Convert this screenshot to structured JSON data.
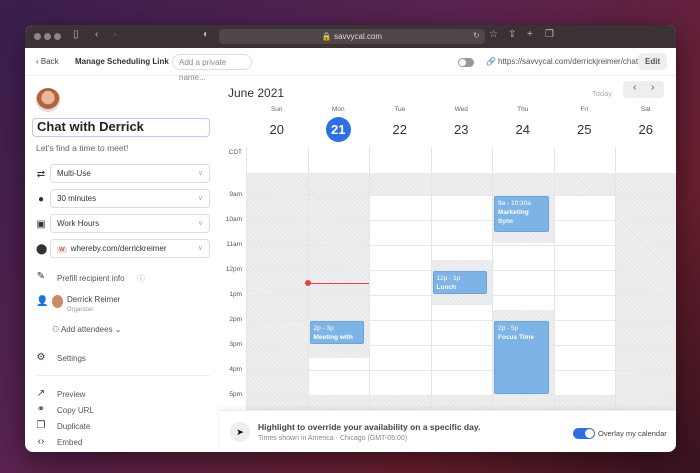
{
  "browser": {
    "url": "savvycal.com"
  },
  "toolbar": {
    "back": "Back",
    "title": "Manage Scheduling Link",
    "private_name_placeholder": "Add a private name...",
    "link": "https://savvycal.com/derrickjreimer/chat",
    "edit": "Edit",
    "public_toggle_on": false
  },
  "sidebar": {
    "title": "Chat with Derrick",
    "subtitle": "Let's find a time to meet!",
    "usage": "Multi-Use",
    "duration": "30 minutes",
    "availability": "Work Hours",
    "location": "whereby.com/derrickreimer",
    "prefill": "Prefill recipient info",
    "organizer_name": "Derrick Reimer",
    "organizer_role": "Organizer",
    "add_attendees": "Add attendees",
    "settings": "Settings",
    "actions": [
      "Preview",
      "Copy URL",
      "Duplicate",
      "Embed"
    ]
  },
  "calendar": {
    "month": "June 2021",
    "today": "Today",
    "timezone_abbr": "CDT",
    "days": [
      {
        "name": "Sun",
        "date": "20"
      },
      {
        "name": "Mon",
        "date": "21",
        "current": true
      },
      {
        "name": "Tue",
        "date": "22"
      },
      {
        "name": "Wed",
        "date": "23"
      },
      {
        "name": "Thu",
        "date": "24"
      },
      {
        "name": "Fri",
        "date": "25"
      },
      {
        "name": "Sat",
        "date": "26"
      }
    ],
    "hours": [
      "9am",
      "10am",
      "11am",
      "12pm",
      "1pm",
      "2pm",
      "3pm",
      "4pm",
      "5pm"
    ],
    "available": [
      [],
      [
        [
          15.5,
          17
        ]
      ],
      [
        [
          9,
          17
        ]
      ],
      [
        [
          9,
          11.6
        ],
        [
          13.4,
          17
        ]
      ],
      [
        [
          10.9,
          13.6
        ]
      ],
      [
        [
          9,
          17
        ]
      ],
      []
    ],
    "events": [
      {
        "day": 1,
        "start": 14,
        "end": 15,
        "time": "2p - 3p",
        "title": "Meeting with Corey"
      },
      {
        "day": 3,
        "start": 12,
        "end": 13,
        "time": "12p - 1p",
        "title": "Lunch"
      },
      {
        "day": 4,
        "start": 9,
        "end": 10.5,
        "time": "9a - 10:30a",
        "title": "Marketing Sync"
      },
      {
        "day": 4,
        "start": 14,
        "end": 17,
        "time": "2p - 5p",
        "title": "Focus Time"
      }
    ],
    "now": {
      "day": 1,
      "time": 12.5
    }
  },
  "bottom": {
    "headline": "Highlight to override your availability on a specific day.",
    "timezone": "Times shown in America - Chicago (GMT-05:00)",
    "overlay_label": "Overlay my calendar",
    "overlay_on": true
  },
  "colors": {
    "accent": "#2f6fe4",
    "event": "#7eb3e6",
    "now_line": "#e8403a"
  }
}
